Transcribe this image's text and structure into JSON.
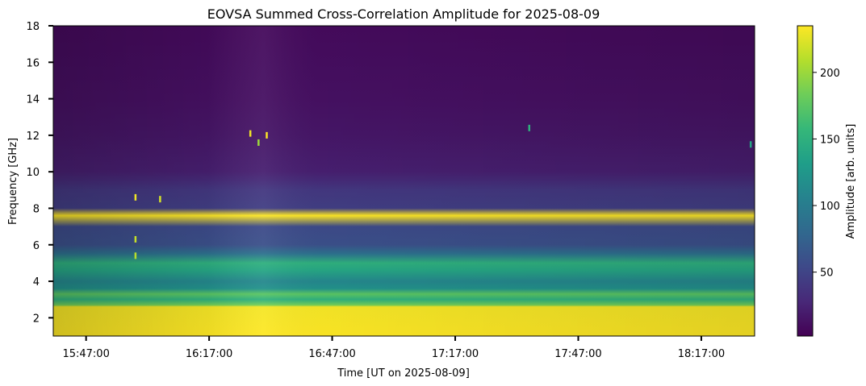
{
  "chart_data": {
    "type": "heatmap",
    "title": "EOVSA Summed Cross-Correlation Amplitude for 2025-08-09",
    "xlabel": "Time [UT on 2025-08-09]",
    "ylabel": "Frequency [GHz]",
    "xlim": [
      "15:39:00",
      "18:30:00"
    ],
    "ylim": [
      1,
      18
    ],
    "x_ticks": [
      "15:47:00",
      "16:17:00",
      "16:47:00",
      "17:17:00",
      "17:47:00",
      "18:17:00"
    ],
    "y_ticks": [
      2,
      4,
      6,
      8,
      10,
      12,
      14,
      16,
      18
    ],
    "colormap": "viridis",
    "colorbar": {
      "label": "Amplitude [arb. units]",
      "range": [
        2,
        235
      ],
      "ticks": [
        50,
        100,
        150,
        200
      ]
    },
    "frequency_profile": [
      {
        "freq_ghz": 1.0,
        "amplitude": 235
      },
      {
        "freq_ghz": 2.6,
        "amplitude": 232
      },
      {
        "freq_ghz": 2.7,
        "amplitude": 185
      },
      {
        "freq_ghz": 3.0,
        "amplitude": 150
      },
      {
        "freq_ghz": 3.3,
        "amplitude": 175
      },
      {
        "freq_ghz": 3.6,
        "amplitude": 120
      },
      {
        "freq_ghz": 4.0,
        "amplitude": 110
      },
      {
        "freq_ghz": 4.6,
        "amplitude": 140
      },
      {
        "freq_ghz": 5.0,
        "amplitude": 150
      },
      {
        "freq_ghz": 5.5,
        "amplitude": 90
      },
      {
        "freq_ghz": 6.0,
        "amplitude": 60
      },
      {
        "freq_ghz": 7.0,
        "amplitude": 55
      },
      {
        "freq_ghz": 7.6,
        "amplitude": 235
      },
      {
        "freq_ghz": 8.0,
        "amplitude": 45
      },
      {
        "freq_ghz": 9.0,
        "amplitude": 40
      },
      {
        "freq_ghz": 10.0,
        "amplitude": 22
      },
      {
        "freq_ghz": 12.0,
        "amplitude": 16
      },
      {
        "freq_ghz": 14.0,
        "amplitude": 12
      },
      {
        "freq_ghz": 16.0,
        "amplitude": 10
      },
      {
        "freq_ghz": 18.0,
        "amplitude": 8
      }
    ],
    "bursts": [
      {
        "time": "15:59:00",
        "freq_ghz": 8.6,
        "amplitude": 230
      },
      {
        "time": "16:05:00",
        "freq_ghz": 8.5,
        "amplitude": 220
      },
      {
        "time": "16:27:00",
        "freq_ghz": 12.1,
        "amplitude": 230
      },
      {
        "time": "16:29:00",
        "freq_ghz": 11.6,
        "amplitude": 200
      },
      {
        "time": "16:31:00",
        "freq_ghz": 12.0,
        "amplitude": 235
      },
      {
        "time": "15:59:00",
        "freq_ghz": 6.3,
        "amplitude": 215
      },
      {
        "time": "15:59:00",
        "freq_ghz": 5.4,
        "amplitude": 210
      },
      {
        "time": "17:35:00",
        "freq_ghz": 12.4,
        "amplitude": 150
      },
      {
        "time": "18:29:00",
        "freq_ghz": 11.5,
        "amplitude": 140
      }
    ],
    "grid": false
  }
}
